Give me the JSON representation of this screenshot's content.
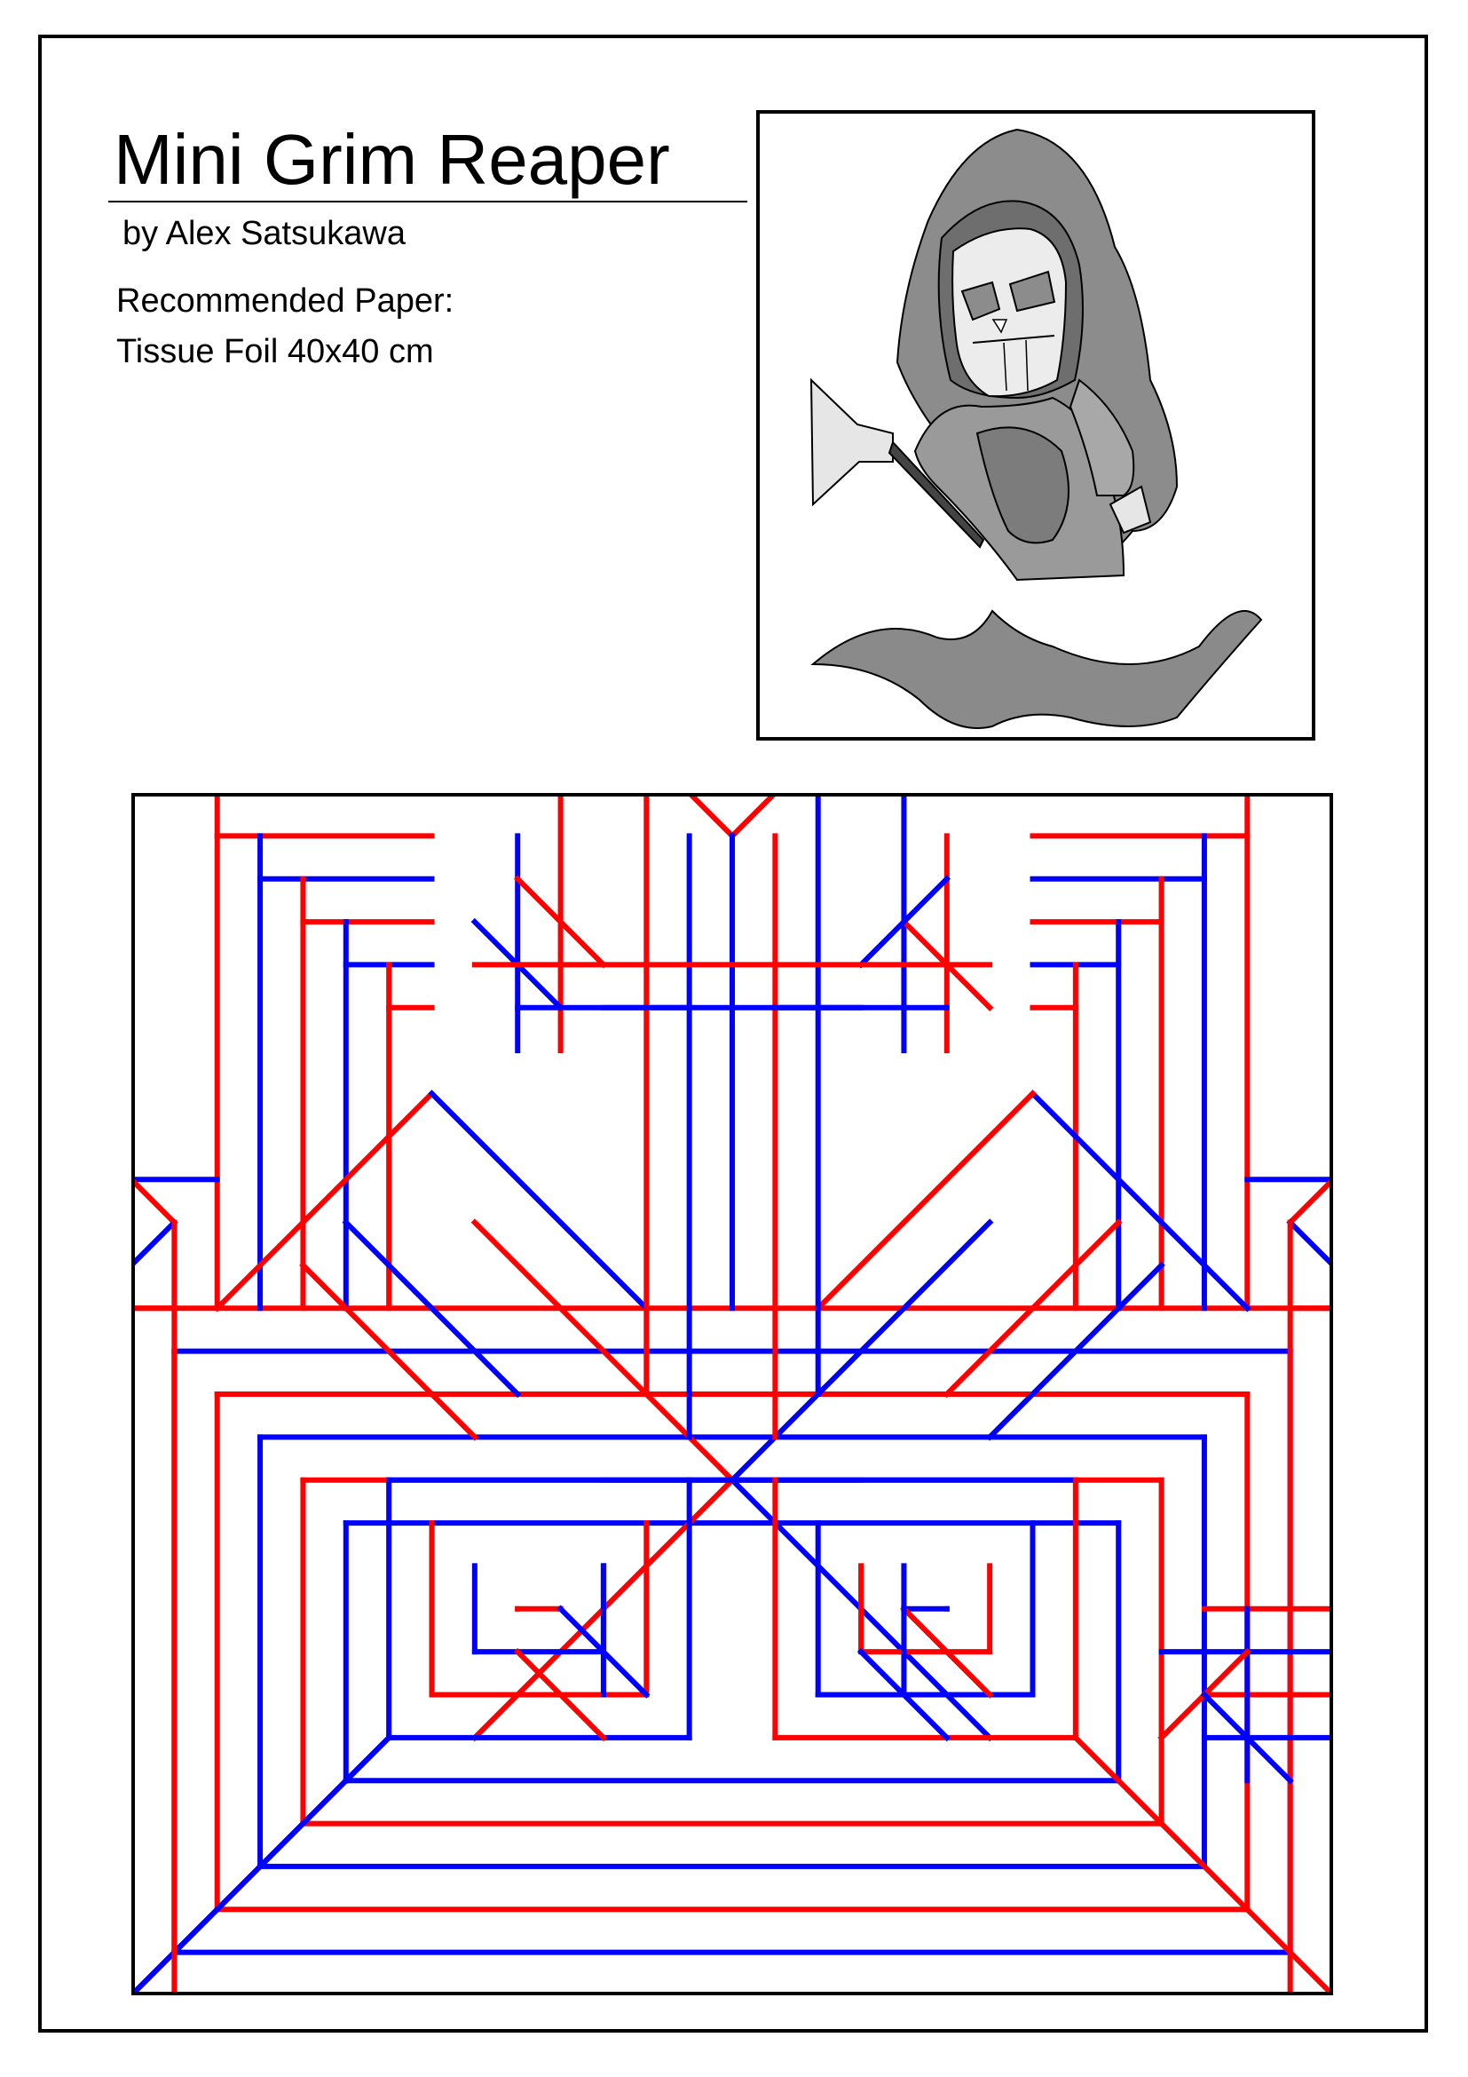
{
  "title": "Mini Grim Reaper",
  "author": "by Alex Satsukawa",
  "paper": {
    "label": "Recommended Paper:",
    "value": "Tissue Foil 40x40 cm"
  },
  "figure": {
    "icon": "grim-reaper-origami-drawing"
  },
  "crease_pattern": {
    "icon": "crease-pattern",
    "colors": {
      "mountain": "#ff0000",
      "valley": "#0000ff",
      "border": "#000000"
    }
  }
}
